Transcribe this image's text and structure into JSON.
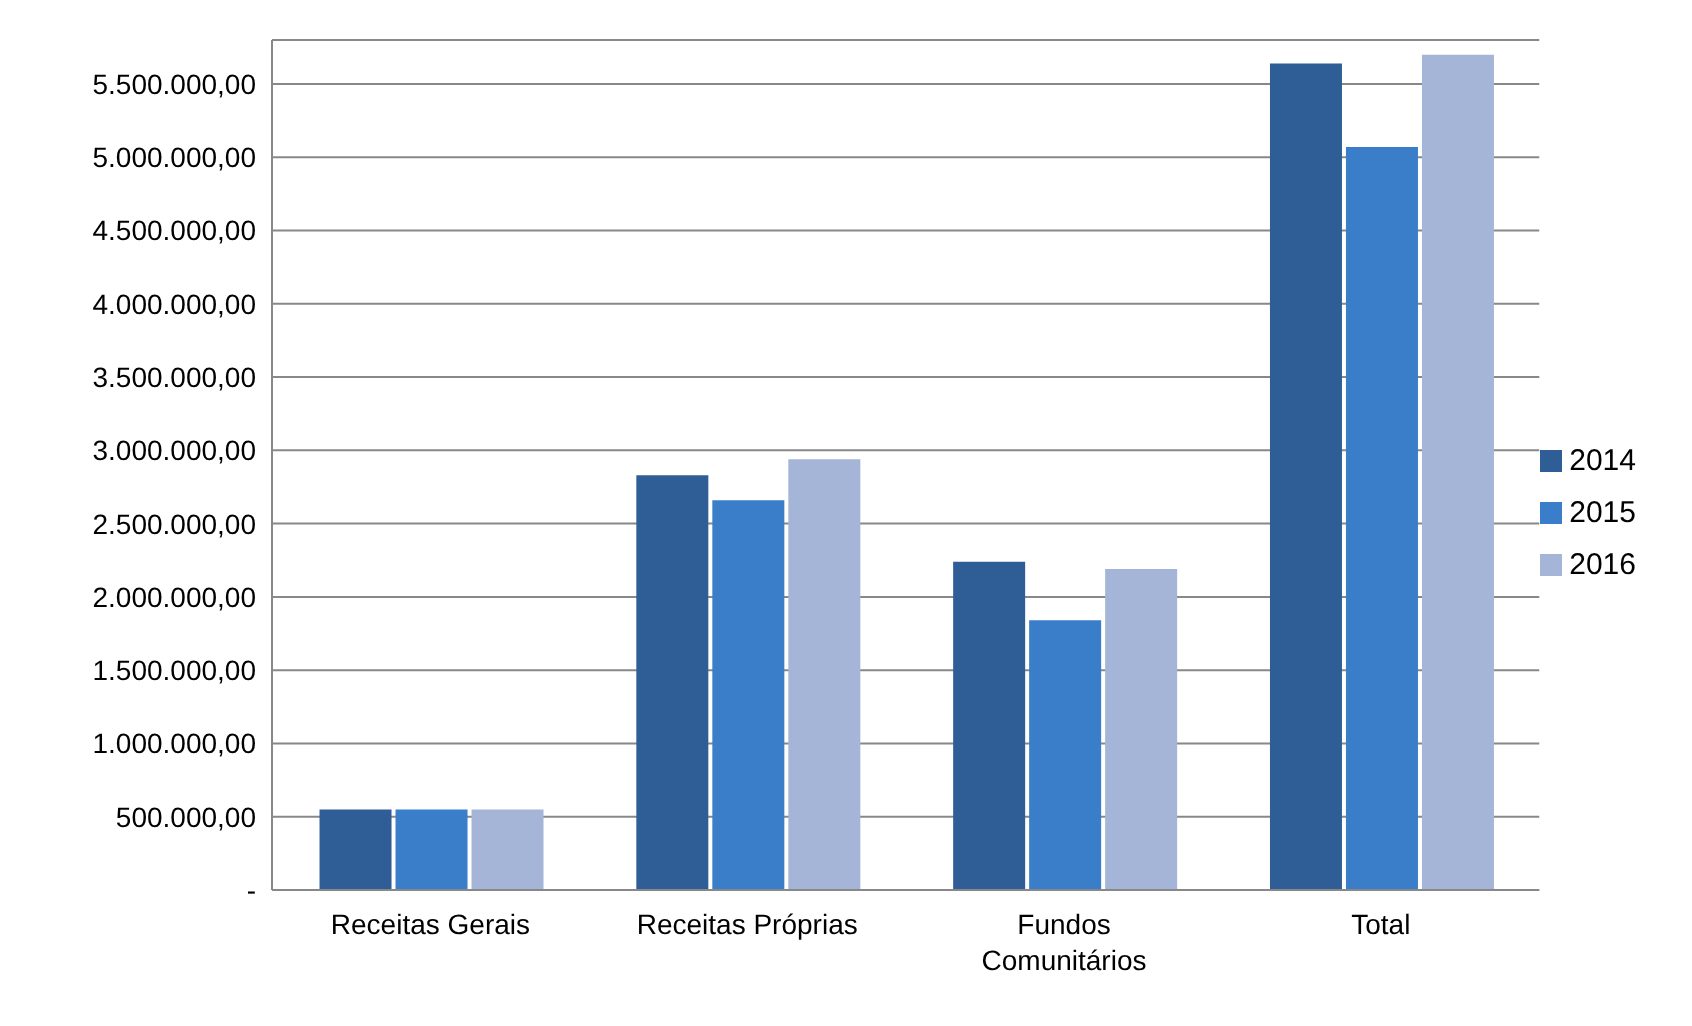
{
  "chart_data": {
    "type": "bar",
    "categories": [
      "Receitas Gerais",
      "Receitas Próprias",
      "Fundos Comunitários",
      "Total"
    ],
    "series": [
      {
        "name": "2014",
        "color": "#2f5d95",
        "values": [
          550000,
          2830000,
          2240000,
          5640000
        ]
      },
      {
        "name": "2015",
        "color": "#3a7dc9",
        "values": [
          550000,
          2660000,
          1840000,
          5070000
        ]
      },
      {
        "name": "2016",
        "color": "#a4b5d8",
        "values": [
          550000,
          2940000,
          2190000,
          5700000
        ]
      }
    ],
    "ylim": [
      0,
      5800000
    ],
    "yticks": [
      {
        "value": 0,
        "label": "-"
      },
      {
        "value": 500000,
        "label": "500.000,00"
      },
      {
        "value": 1000000,
        "label": "1.000.000,00"
      },
      {
        "value": 1500000,
        "label": "1.500.000,00"
      },
      {
        "value": 2000000,
        "label": "2.000.000,00"
      },
      {
        "value": 2500000,
        "label": "2.500.000,00"
      },
      {
        "value": 3000000,
        "label": "3.000.000,00"
      },
      {
        "value": 3500000,
        "label": "3.500.000,00"
      },
      {
        "value": 4000000,
        "label": "4.000.000,00"
      },
      {
        "value": 4500000,
        "label": "4.500.000,00"
      },
      {
        "value": 5000000,
        "label": "5.000.000,00"
      },
      {
        "value": 5500000,
        "label": "5.500.000,00"
      }
    ],
    "grid": "y",
    "legend": "right"
  }
}
